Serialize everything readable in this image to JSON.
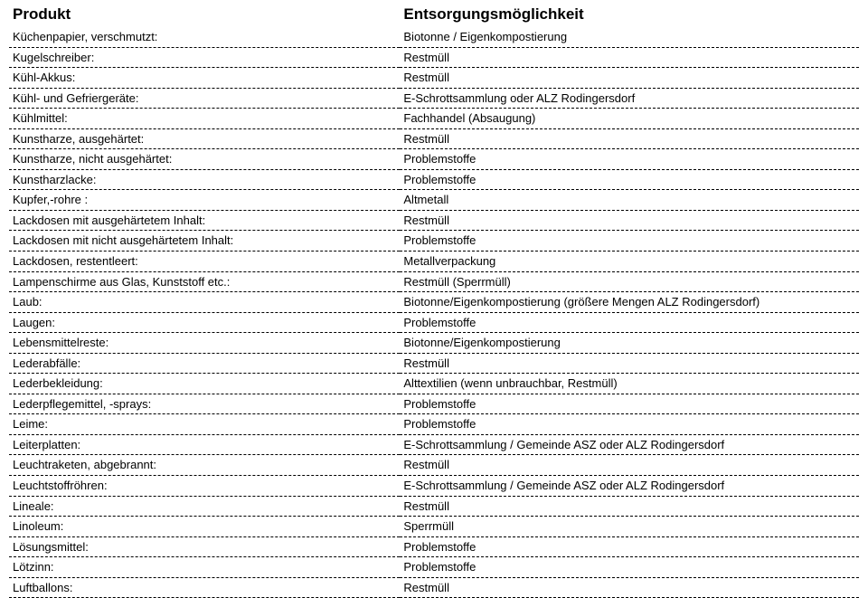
{
  "table": {
    "header": {
      "product": "Produkt",
      "disposal": "Entsorgungsmöglichkeit"
    },
    "rows": [
      {
        "product": "Küchenpapier, verschmutzt:",
        "disposal": "Biotonne / Eigenkompostierung"
      },
      {
        "product": "Kugelschreiber:",
        "disposal": "Restmüll"
      },
      {
        "product": "Kühl-Akkus:",
        "disposal": "Restmüll"
      },
      {
        "product": "Kühl- und Gefriergeräte:",
        "disposal": "E-Schrottsammlung oder ALZ Rodingersdorf"
      },
      {
        "product": "Kühlmittel:",
        "disposal": "Fachhandel (Absaugung)"
      },
      {
        "product": "Kunstharze, ausgehärtet:",
        "disposal": "Restmüll"
      },
      {
        "product": "Kunstharze, nicht ausgehärtet:",
        "disposal": "Problemstoffe"
      },
      {
        "product": "Kunstharzlacke:",
        "disposal": "Problemstoffe"
      },
      {
        "product": "Kupfer,-rohre :",
        "disposal": "Altmetall"
      },
      {
        "product": "Lackdosen mit ausgehärtetem Inhalt:",
        "disposal": "Restmüll"
      },
      {
        "product": "Lackdosen mit nicht ausgehärtetem Inhalt:",
        "disposal": "Problemstoffe"
      },
      {
        "product": "Lackdosen, restentleert:",
        "disposal": "Metallverpackung"
      },
      {
        "product": "Lampenschirme aus Glas, Kunststoff etc.:",
        "disposal": "Restmüll (Sperrmüll)"
      },
      {
        "product": "Laub:",
        "disposal": "Biotonne/Eigenkompostierung (größere Mengen ALZ Rodingersdorf)"
      },
      {
        "product": "Laugen:",
        "disposal": "Problemstoffe"
      },
      {
        "product": "Lebensmittelreste:",
        "disposal": "Biotonne/Eigenkompostierung"
      },
      {
        "product": "Lederabfälle:",
        "disposal": "Restmüll"
      },
      {
        "product": "Lederbekleidung:",
        "disposal": "Alttextilien (wenn unbrauchbar, Restmüll)"
      },
      {
        "product": "Lederpflegemittel, -sprays:",
        "disposal": "Problemstoffe"
      },
      {
        "product": "Leime:",
        "disposal": "Problemstoffe"
      },
      {
        "product": "Leiterplatten:",
        "disposal": "E-Schrottsammlung / Gemeinde ASZ oder ALZ Rodingersdorf"
      },
      {
        "product": "Leuchtraketen, abgebrannt:",
        "disposal": "Restmüll"
      },
      {
        "product": "Leuchtstoffröhren:",
        "disposal": "E-Schrottsammlung / Gemeinde ASZ oder ALZ Rodingersdorf"
      },
      {
        "product": "Lineale:",
        "disposal": "Restmüll"
      },
      {
        "product": "Linoleum:",
        "disposal": "Sperrmüll"
      },
      {
        "product": "Lösungsmittel:",
        "disposal": "Problemstoffe"
      },
      {
        "product": "Lötzinn:",
        "disposal": "Problemstoffe"
      },
      {
        "product": "Luftballons:",
        "disposal": "Restmüll"
      }
    ]
  }
}
